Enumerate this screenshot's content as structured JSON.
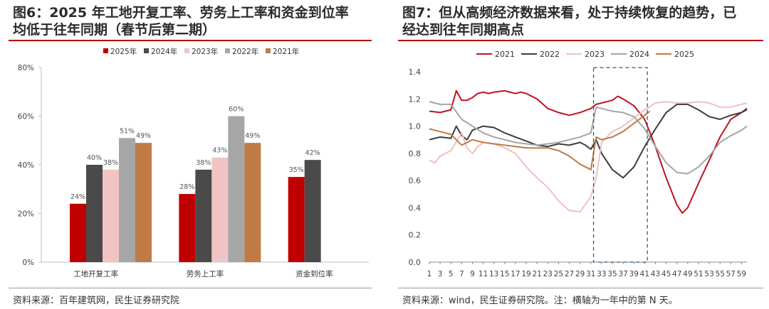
{
  "left": {
    "title_line1": "图6：2025 年工地开复工率、劳务上工率和资金到位率",
    "title_line2": "均低于往年同期（春节后第二期）",
    "source": "资料来源：百年建筑网，民生证券研究院"
  },
  "right": {
    "title_line1": "图7：但从高频经济数据来看，处于持续恢复的趋势，已",
    "title_line2": "经达到往年同期高点",
    "source": "资料来源：wind，民生证券研究院。注：横轴为一年中的第 N 天。"
  },
  "chart_data": [
    {
      "type": "bar",
      "title": "",
      "xlabel": "",
      "ylabel": "",
      "categories": [
        "工地开复工率",
        "劳务上工率",
        "资金到位率"
      ],
      "ylim": [
        0,
        80
      ],
      "yticks": [
        "0%",
        "20%",
        "40%",
        "60%",
        "80%"
      ],
      "legend_position": "top",
      "series": [
        {
          "name": "2025年",
          "color": "#c00000",
          "values": [
            24,
            28,
            35
          ],
          "labels": [
            "24%",
            "28%",
            "35%"
          ]
        },
        {
          "name": "2024年",
          "color": "#4a4a4a",
          "values": [
            40,
            38,
            42
          ],
          "labels": [
            "40%",
            "38%",
            "42%"
          ]
        },
        {
          "name": "2023年",
          "color": "#f0c4c4",
          "values": [
            38,
            43,
            null
          ],
          "labels": [
            "38%",
            "43%",
            ""
          ]
        },
        {
          "name": "2022年",
          "color": "#a6a6a6",
          "values": [
            51,
            60,
            null
          ],
          "labels": [
            "51%",
            "60%",
            ""
          ]
        },
        {
          "name": "2021年",
          "color": "#c07a45",
          "values": [
            49,
            49,
            null
          ],
          "labels": [
            "49%",
            "49%",
            ""
          ]
        }
      ]
    },
    {
      "type": "line",
      "title": "",
      "xlabel": "",
      "ylabel": "",
      "xlim": [
        1,
        60
      ],
      "ylim": [
        0,
        1.4
      ],
      "yticks": [
        "0.0",
        "0.2",
        "0.4",
        "0.6",
        "0.8",
        "1.0",
        "1.2",
        "1.4"
      ],
      "xticks": [
        1,
        3,
        5,
        7,
        9,
        11,
        13,
        15,
        17,
        19,
        21,
        23,
        25,
        27,
        29,
        31,
        33,
        35,
        37,
        39,
        41,
        43,
        45,
        47,
        49,
        51,
        53,
        55,
        57,
        59
      ],
      "xtick_labels": [
        "1",
        "3",
        "5",
        "7",
        "9",
        "11",
        "13",
        "15",
        "17",
        "19",
        "21",
        "23",
        "25",
        "27",
        "29",
        "31",
        "33",
        "35",
        "37",
        "39",
        "41",
        "43",
        "45",
        "47",
        "49",
        "51",
        "53",
        "55",
        "57",
        "59"
      ],
      "legend_position": "top",
      "highlight_box": {
        "x_range": [
          31.5,
          41.5
        ],
        "y_range": [
          0,
          1.43
        ],
        "style": "dashed",
        "color": "#2e5c7a"
      },
      "series": [
        {
          "name": "2021",
          "color": "#c0141e",
          "x": [
            1,
            3,
            5,
            6,
            7,
            8,
            9,
            10,
            11,
            12,
            13,
            15,
            17,
            18,
            19,
            21,
            23,
            25,
            27,
            29,
            31,
            32,
            33,
            35,
            36,
            37,
            39,
            41,
            43,
            45,
            47,
            48,
            49,
            51,
            53,
            55,
            57,
            59,
            60
          ],
          "y": [
            1.11,
            1.1,
            1.12,
            1.26,
            1.19,
            1.19,
            1.21,
            1.24,
            1.25,
            1.24,
            1.25,
            1.26,
            1.24,
            1.25,
            1.24,
            1.2,
            1.13,
            1.1,
            1.08,
            1.1,
            1.13,
            1.16,
            1.17,
            1.19,
            1.22,
            1.2,
            1.15,
            1.05,
            0.85,
            0.62,
            0.42,
            0.36,
            0.4,
            0.58,
            0.75,
            0.92,
            1.05,
            1.1,
            1.12
          ]
        },
        {
          "name": "2022",
          "color": "#3d3d3d",
          "x": [
            1,
            3,
            5,
            6,
            7,
            8,
            9,
            11,
            13,
            15,
            17,
            19,
            21,
            23,
            25,
            27,
            29,
            30,
            31,
            32,
            33,
            35,
            37,
            39,
            41,
            43,
            45,
            47,
            49,
            51,
            53,
            55,
            57,
            59,
            60
          ],
          "y": [
            0.9,
            0.92,
            0.91,
            1.0,
            0.93,
            0.9,
            0.97,
            1.0,
            0.99,
            0.95,
            0.92,
            0.89,
            0.86,
            0.85,
            0.87,
            0.86,
            0.88,
            0.86,
            0.83,
            0.9,
            0.8,
            0.68,
            0.62,
            0.7,
            0.85,
            0.98,
            1.1,
            1.16,
            1.16,
            1.12,
            1.07,
            1.05,
            1.08,
            1.1,
            1.13
          ]
        },
        {
          "name": "2023",
          "color": "#f0c0c0",
          "x": [
            1,
            2,
            3,
            5,
            7,
            8,
            9,
            10,
            11,
            13,
            15,
            17,
            19,
            21,
            23,
            25,
            27,
            29,
            31,
            32,
            33,
            35,
            37,
            39,
            41,
            43,
            45,
            47,
            49,
            51,
            53,
            55,
            57,
            59,
            60
          ],
          "y": [
            0.75,
            0.73,
            0.78,
            0.82,
            0.95,
            0.84,
            0.8,
            0.85,
            0.88,
            0.87,
            0.84,
            0.8,
            0.7,
            0.62,
            0.55,
            0.45,
            0.38,
            0.37,
            0.48,
            0.62,
            0.88,
            0.96,
            1.0,
            1.06,
            1.12,
            1.17,
            1.18,
            1.17,
            1.17,
            1.18,
            1.17,
            1.14,
            1.14,
            1.16,
            1.17
          ]
        },
        {
          "name": "2024",
          "color": "#a6a6a6",
          "x": [
            1,
            3,
            5,
            7,
            9,
            11,
            13,
            15,
            17,
            19,
            21,
            23,
            25,
            27,
            29,
            31,
            32,
            33,
            35,
            37,
            39,
            41,
            43,
            45,
            47,
            49,
            51,
            53,
            55,
            57,
            59,
            60
          ],
          "y": [
            1.18,
            1.16,
            1.16,
            1.05,
            1.0,
            0.95,
            0.92,
            0.9,
            0.88,
            0.87,
            0.86,
            0.87,
            0.88,
            0.9,
            0.92,
            0.95,
            1.14,
            1.13,
            1.11,
            1.1,
            1.07,
            0.98,
            0.85,
            0.73,
            0.66,
            0.65,
            0.7,
            0.78,
            0.88,
            0.93,
            0.97,
            1.0
          ]
        },
        {
          "name": "2025",
          "color": "#c07a45",
          "x": [
            1,
            3,
            5,
            6,
            7,
            9,
            11,
            13,
            15,
            17,
            19,
            21,
            23,
            25,
            27,
            29,
            31,
            32,
            33,
            35,
            37,
            39,
            41,
            42
          ],
          "y": [
            0.98,
            0.96,
            0.94,
            0.9,
            0.86,
            0.9,
            0.88,
            0.87,
            0.86,
            0.85,
            0.84,
            0.84,
            0.84,
            0.82,
            0.78,
            0.72,
            0.68,
            0.92,
            0.9,
            0.92,
            0.96,
            1.02,
            1.08,
            1.11
          ]
        }
      ]
    }
  ]
}
